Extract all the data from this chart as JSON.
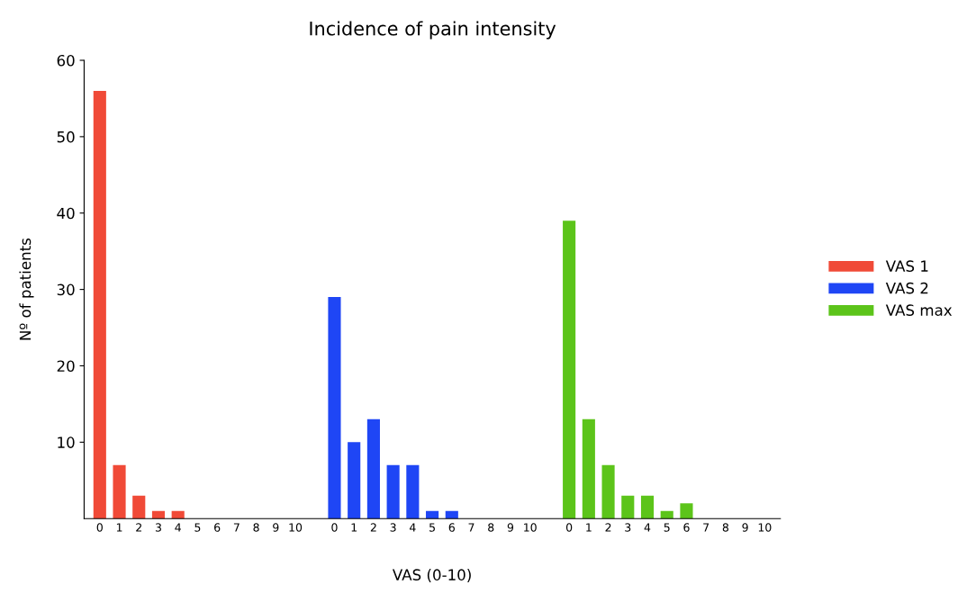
{
  "chart_data": {
    "type": "bar",
    "title": "Incidence of pain intensity",
    "xlabel": "VAS (0-10)",
    "ylabel": "Nº of patients",
    "categories": [
      "0",
      "1",
      "2",
      "3",
      "4",
      "5",
      "6",
      "7",
      "8",
      "9",
      "10",
      null,
      "0",
      "1",
      "2",
      "3",
      "4",
      "5",
      "6",
      "7",
      "8",
      "9",
      "10",
      null,
      "0",
      "1",
      "2",
      "3",
      "4",
      "5",
      "6",
      "7",
      "8",
      "9",
      "10"
    ],
    "series": [
      {
        "name": "VAS 1",
        "color": "#f04a37",
        "values": [
          56,
          7,
          3,
          1,
          1,
          0,
          0,
          0,
          0,
          0,
          0,
          null,
          null,
          null,
          null,
          null,
          null,
          null,
          null,
          null,
          null,
          null,
          null,
          null,
          null,
          null,
          null,
          null,
          null,
          null,
          null,
          null,
          null,
          null,
          null
        ]
      },
      {
        "name": "VAS 2",
        "color": "#1f46f5",
        "values": [
          null,
          null,
          null,
          null,
          null,
          null,
          null,
          null,
          null,
          null,
          null,
          null,
          29,
          10,
          13,
          7,
          7,
          1,
          1,
          0,
          0,
          0,
          0,
          null,
          null,
          null,
          null,
          null,
          null,
          null,
          null,
          null,
          null,
          null,
          null
        ]
      },
      {
        "name": "VAS max",
        "color": "#5cc41a",
        "values": [
          null,
          null,
          null,
          null,
          null,
          null,
          null,
          null,
          null,
          null,
          null,
          null,
          null,
          null,
          null,
          null,
          null,
          null,
          null,
          null,
          null,
          null,
          null,
          null,
          39,
          13,
          7,
          3,
          3,
          1,
          2,
          0,
          0,
          0,
          0
        ]
      }
    ],
    "ylim": [
      0,
      60
    ],
    "yticks": [
      10,
      20,
      30,
      40,
      50,
      60
    ],
    "grid": false,
    "legend": "right"
  }
}
